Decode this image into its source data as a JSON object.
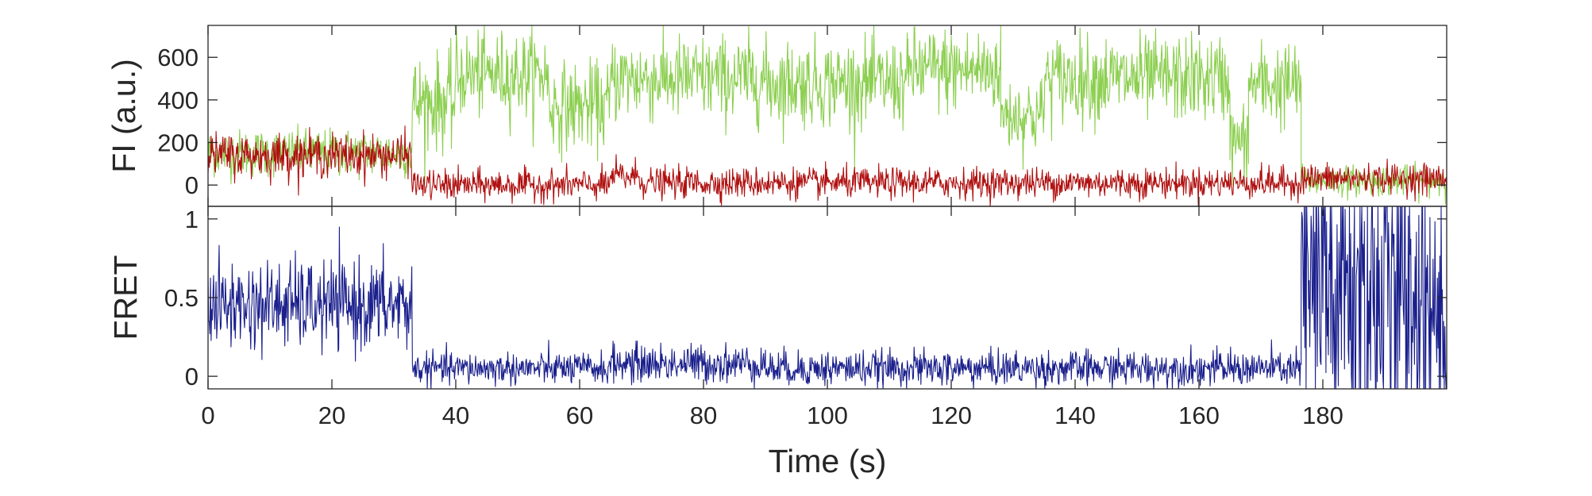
{
  "chart_data": [
    {
      "type": "line",
      "panel": "top",
      "ylabel": "FI (a.u.)",
      "xlabel": "",
      "xlim": [
        0,
        200
      ],
      "ylim": [
        -100,
        750
      ],
      "yticks": [
        0,
        200,
        400,
        600
      ],
      "ytick_labels": [
        "0",
        "200",
        "400",
        "600"
      ],
      "xticks": [
        0,
        20,
        40,
        60,
        80,
        100,
        120,
        140,
        160,
        180
      ],
      "show_x_tick_labels": false,
      "grid": false,
      "colors": {
        "donor": "#8ccf50",
        "acceptor": "#b01010"
      },
      "series": [
        {
          "id": "donor",
          "stroke": "#8ccf50",
          "segments": [
            {
              "x": [
                0,
                33
              ],
              "mean": 150,
              "noise": 55
            },
            {
              "x": [
                33,
                40
              ],
              "mean": 390,
              "noise": 110
            },
            {
              "x": [
                40,
                55
              ],
              "mean": 520,
              "noise": 100
            },
            {
              "x": [
                55,
                65
              ],
              "mean": 370,
              "noise": 100
            },
            {
              "x": [
                65,
                90
              ],
              "mean": 500,
              "noise": 100
            },
            {
              "x": [
                90,
                113
              ],
              "mean": 480,
              "noise": 100
            },
            {
              "x": [
                113,
                128
              ],
              "mean": 540,
              "noise": 100
            },
            {
              "x": [
                128,
                135
              ],
              "mean": 330,
              "noise": 90
            },
            {
              "x": [
                135,
                165
              ],
              "mean": 500,
              "noise": 100
            },
            {
              "x": [
                165,
                168
              ],
              "mean": 200,
              "noise": 90
            },
            {
              "x": [
                168,
                176.5
              ],
              "mean": 470,
              "noise": 100
            },
            {
              "x": [
                176.5,
                200
              ],
              "mean": 20,
              "noise": 35
            }
          ]
        },
        {
          "id": "acceptor",
          "stroke": "#b01010",
          "segments": [
            {
              "x": [
                0,
                33
              ],
              "mean": 140,
              "noise": 50
            },
            {
              "x": [
                33,
                65
              ],
              "mean": 0,
              "noise": 35
            },
            {
              "x": [
                65,
                70
              ],
              "mean": 40,
              "noise": 40
            },
            {
              "x": [
                70,
                176.5
              ],
              "mean": 10,
              "noise": 35
            },
            {
              "x": [
                176.5,
                200
              ],
              "mean": 30,
              "noise": 35
            }
          ]
        }
      ]
    },
    {
      "type": "line",
      "panel": "bottom",
      "ylabel": "FRET",
      "xlabel": "Time (s)",
      "xlim": [
        0,
        200
      ],
      "ylim": [
        -0.08,
        1.08
      ],
      "yticks": [
        0,
        0.5,
        1
      ],
      "ytick_labels": [
        "0",
        "0.5",
        "1"
      ],
      "xticks": [
        0,
        20,
        40,
        60,
        80,
        100,
        120,
        140,
        160,
        180
      ],
      "xtick_labels": [
        "0",
        "20",
        "40",
        "60",
        "80",
        "100",
        "120",
        "140",
        "160",
        "180"
      ],
      "grid": false,
      "series": [
        {
          "id": "fret",
          "stroke": "#1a1f8c",
          "segments": [
            {
              "x": [
                0,
                33
              ],
              "mean": 0.45,
              "noise": 0.14
            },
            {
              "x": [
                33,
                65
              ],
              "mean": 0.05,
              "noise": 0.05
            },
            {
              "x": [
                65,
                90
              ],
              "mean": 0.08,
              "noise": 0.06
            },
            {
              "x": [
                90,
                176.5
              ],
              "mean": 0.05,
              "noise": 0.055
            },
            {
              "x": [
                176.5,
                200
              ],
              "mean": 0.5,
              "noise": 0.6
            }
          ]
        }
      ]
    }
  ]
}
